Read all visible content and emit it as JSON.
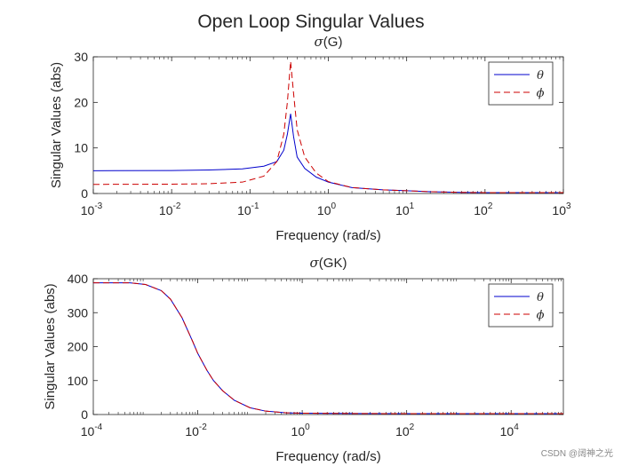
{
  "figure_title": "Open Loop Singular Values",
  "watermark": "CSDN @阔神之光",
  "colors": {
    "theta": "#0000cc",
    "phi": "#cc0000",
    "axis": "#262626"
  },
  "chart_data": [
    {
      "type": "line",
      "title_symbol": "σ",
      "title_text": "(G)",
      "xlabel": "Frequency (rad/s)",
      "ylabel": "Singular Values (abs)",
      "xscale": "log",
      "xlim": [
        0.001,
        1000
      ],
      "ylim": [
        0,
        30
      ],
      "xticks": [
        0.001,
        0.01,
        0.1,
        1,
        10,
        100,
        1000
      ],
      "xtick_labels": [
        {
          "base": "10",
          "exp": "-3"
        },
        {
          "base": "10",
          "exp": "-2"
        },
        {
          "base": "10",
          "exp": "-1"
        },
        {
          "base": "10",
          "exp": "0"
        },
        {
          "base": "10",
          "exp": "1"
        },
        {
          "base": "10",
          "exp": "2"
        },
        {
          "base": "10",
          "exp": "3"
        }
      ],
      "yticks": [
        0,
        10,
        20,
        30
      ],
      "ytick_labels": [
        "0",
        "10",
        "20",
        "30"
      ],
      "legend_position": "top-right",
      "series": [
        {
          "name": "θ",
          "style": "solid",
          "color": "#0000cc",
          "x": [
            0.001,
            0.01,
            0.03,
            0.08,
            0.15,
            0.22,
            0.27,
            0.3,
            0.33,
            0.36,
            0.4,
            0.5,
            0.7,
            1,
            2,
            5,
            10,
            20,
            50,
            100,
            1000
          ],
          "y": [
            5.0,
            5.05,
            5.15,
            5.4,
            6.0,
            7.0,
            9.5,
            13.0,
            17.5,
            12.5,
            8.0,
            5.5,
            3.6,
            2.5,
            1.3,
            0.8,
            0.6,
            0.4,
            0.25,
            0.2,
            0.2
          ]
        },
        {
          "name": "ϕ",
          "style": "dashed",
          "color": "#cc0000",
          "x": [
            0.001,
            0.01,
            0.03,
            0.08,
            0.15,
            0.22,
            0.27,
            0.3,
            0.33,
            0.36,
            0.4,
            0.5,
            0.7,
            1,
            2,
            5,
            10,
            20,
            50,
            100,
            1000
          ],
          "y": [
            2.0,
            2.05,
            2.15,
            2.5,
            3.8,
            7.0,
            13.0,
            20.0,
            29.0,
            22.0,
            14.0,
            8.0,
            4.5,
            2.6,
            1.3,
            0.8,
            0.6,
            0.4,
            0.25,
            0.2,
            0.2
          ]
        }
      ]
    },
    {
      "type": "line",
      "title_symbol": "σ",
      "title_text": "(GK)",
      "xlabel": "Frequency (rad/s)",
      "ylabel": "Singular Values (abs)",
      "xscale": "log",
      "xlim": [
        0.0001,
        100000
      ],
      "ylim": [
        0,
        400
      ],
      "xticks": [
        0.0001,
        0.01,
        1,
        100,
        10000
      ],
      "xtick_labels": [
        {
          "base": "10",
          "exp": "-4"
        },
        {
          "base": "10",
          "exp": "-2"
        },
        {
          "base": "10",
          "exp": "0"
        },
        {
          "base": "10",
          "exp": "2"
        },
        {
          "base": "10",
          "exp": "4"
        }
      ],
      "yticks": [
        0,
        100,
        200,
        300,
        400
      ],
      "ytick_labels": [
        "0",
        "100",
        "200",
        "300",
        "400"
      ],
      "legend_position": "top-right",
      "series": [
        {
          "name": "θ",
          "style": "solid",
          "color": "#0000cc",
          "x": [
            0.0001,
            0.0005,
            0.001,
            0.002,
            0.003,
            0.005,
            0.008,
            0.01,
            0.015,
            0.02,
            0.03,
            0.05,
            0.1,
            0.2,
            0.5,
            1,
            10,
            100,
            1000,
            100000
          ],
          "y": [
            388,
            388,
            383,
            365,
            340,
            285,
            215,
            180,
            130,
            100,
            70,
            42,
            20,
            10,
            5,
            4,
            3,
            2.5,
            2.5,
            2.5
          ]
        },
        {
          "name": "ϕ",
          "style": "dashed",
          "color": "#cc0000",
          "x": [
            0.0001,
            0.0005,
            0.001,
            0.002,
            0.003,
            0.005,
            0.008,
            0.01,
            0.015,
            0.02,
            0.03,
            0.05,
            0.1,
            0.2,
            0.5,
            1,
            10,
            100,
            1000,
            100000
          ],
          "y": [
            388,
            388,
            383,
            365,
            340,
            285,
            215,
            180,
            130,
            100,
            70,
            42,
            20,
            10,
            5,
            4,
            3,
            2.5,
            2.5,
            2.5
          ]
        }
      ]
    }
  ]
}
